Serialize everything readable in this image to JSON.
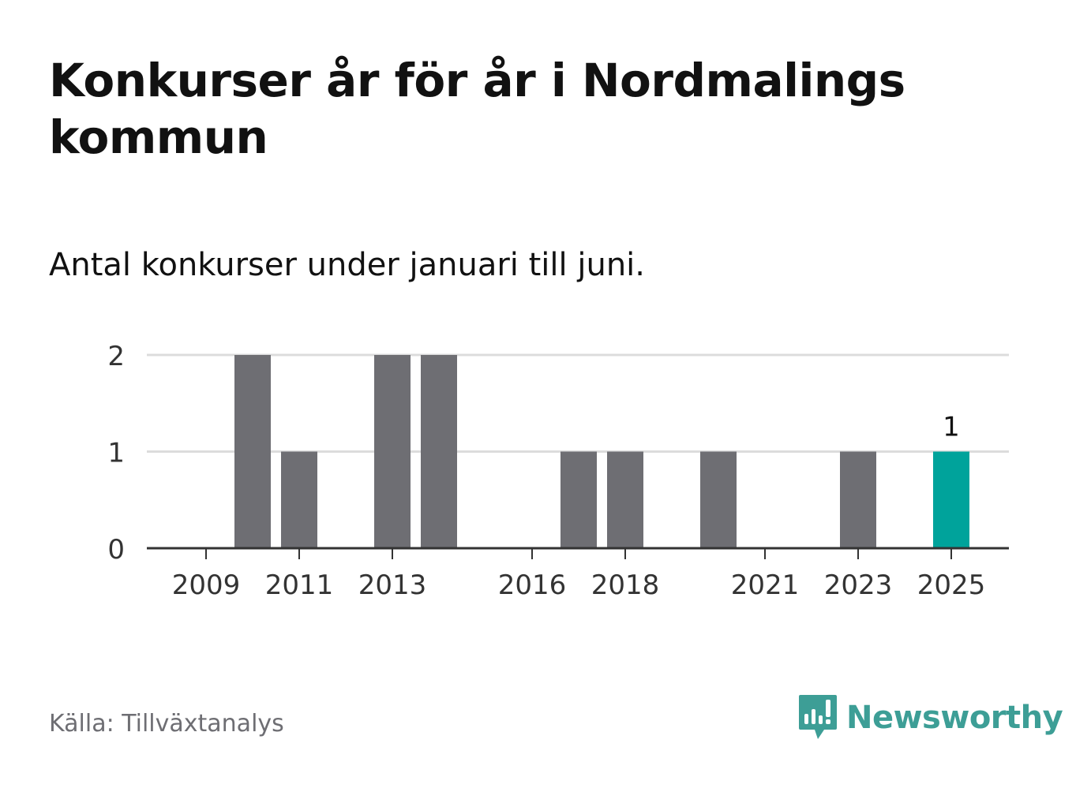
{
  "title": "Konkurser år för år i Nordmalings kommun",
  "subtitle": "Antal konkurser under januari till juni.",
  "source": "Källa: Tillväxtanalys",
  "brand": {
    "name": "Newsworthy",
    "icon": "newsworthy-logo-icon",
    "color": "#3d9e96"
  },
  "colors": {
    "bar": "#6e6e73",
    "highlight": "#00a39b",
    "grid": "#dcdcdc",
    "axis": "#333333"
  },
  "chart_data": {
    "type": "bar",
    "categories": [
      "2009",
      "2010",
      "2011",
      "2012",
      "2013",
      "2014",
      "2015",
      "2016",
      "2017",
      "2018",
      "2019",
      "2020",
      "2021",
      "2022",
      "2023",
      "2024",
      "2025"
    ],
    "values": [
      0,
      2,
      1,
      0,
      2,
      2,
      0,
      0,
      1,
      1,
      0,
      1,
      0,
      0,
      1,
      0,
      1
    ],
    "x_tick_labels": [
      "2009",
      "2011",
      "2013",
      "2016",
      "2018",
      "2021",
      "2023",
      "2025"
    ],
    "y_ticks": [
      0,
      1,
      2
    ],
    "ylim": [
      0,
      2
    ],
    "highlight": {
      "category": "2025",
      "label": "1"
    },
    "grid": true,
    "xlabel": "",
    "ylabel": ""
  }
}
